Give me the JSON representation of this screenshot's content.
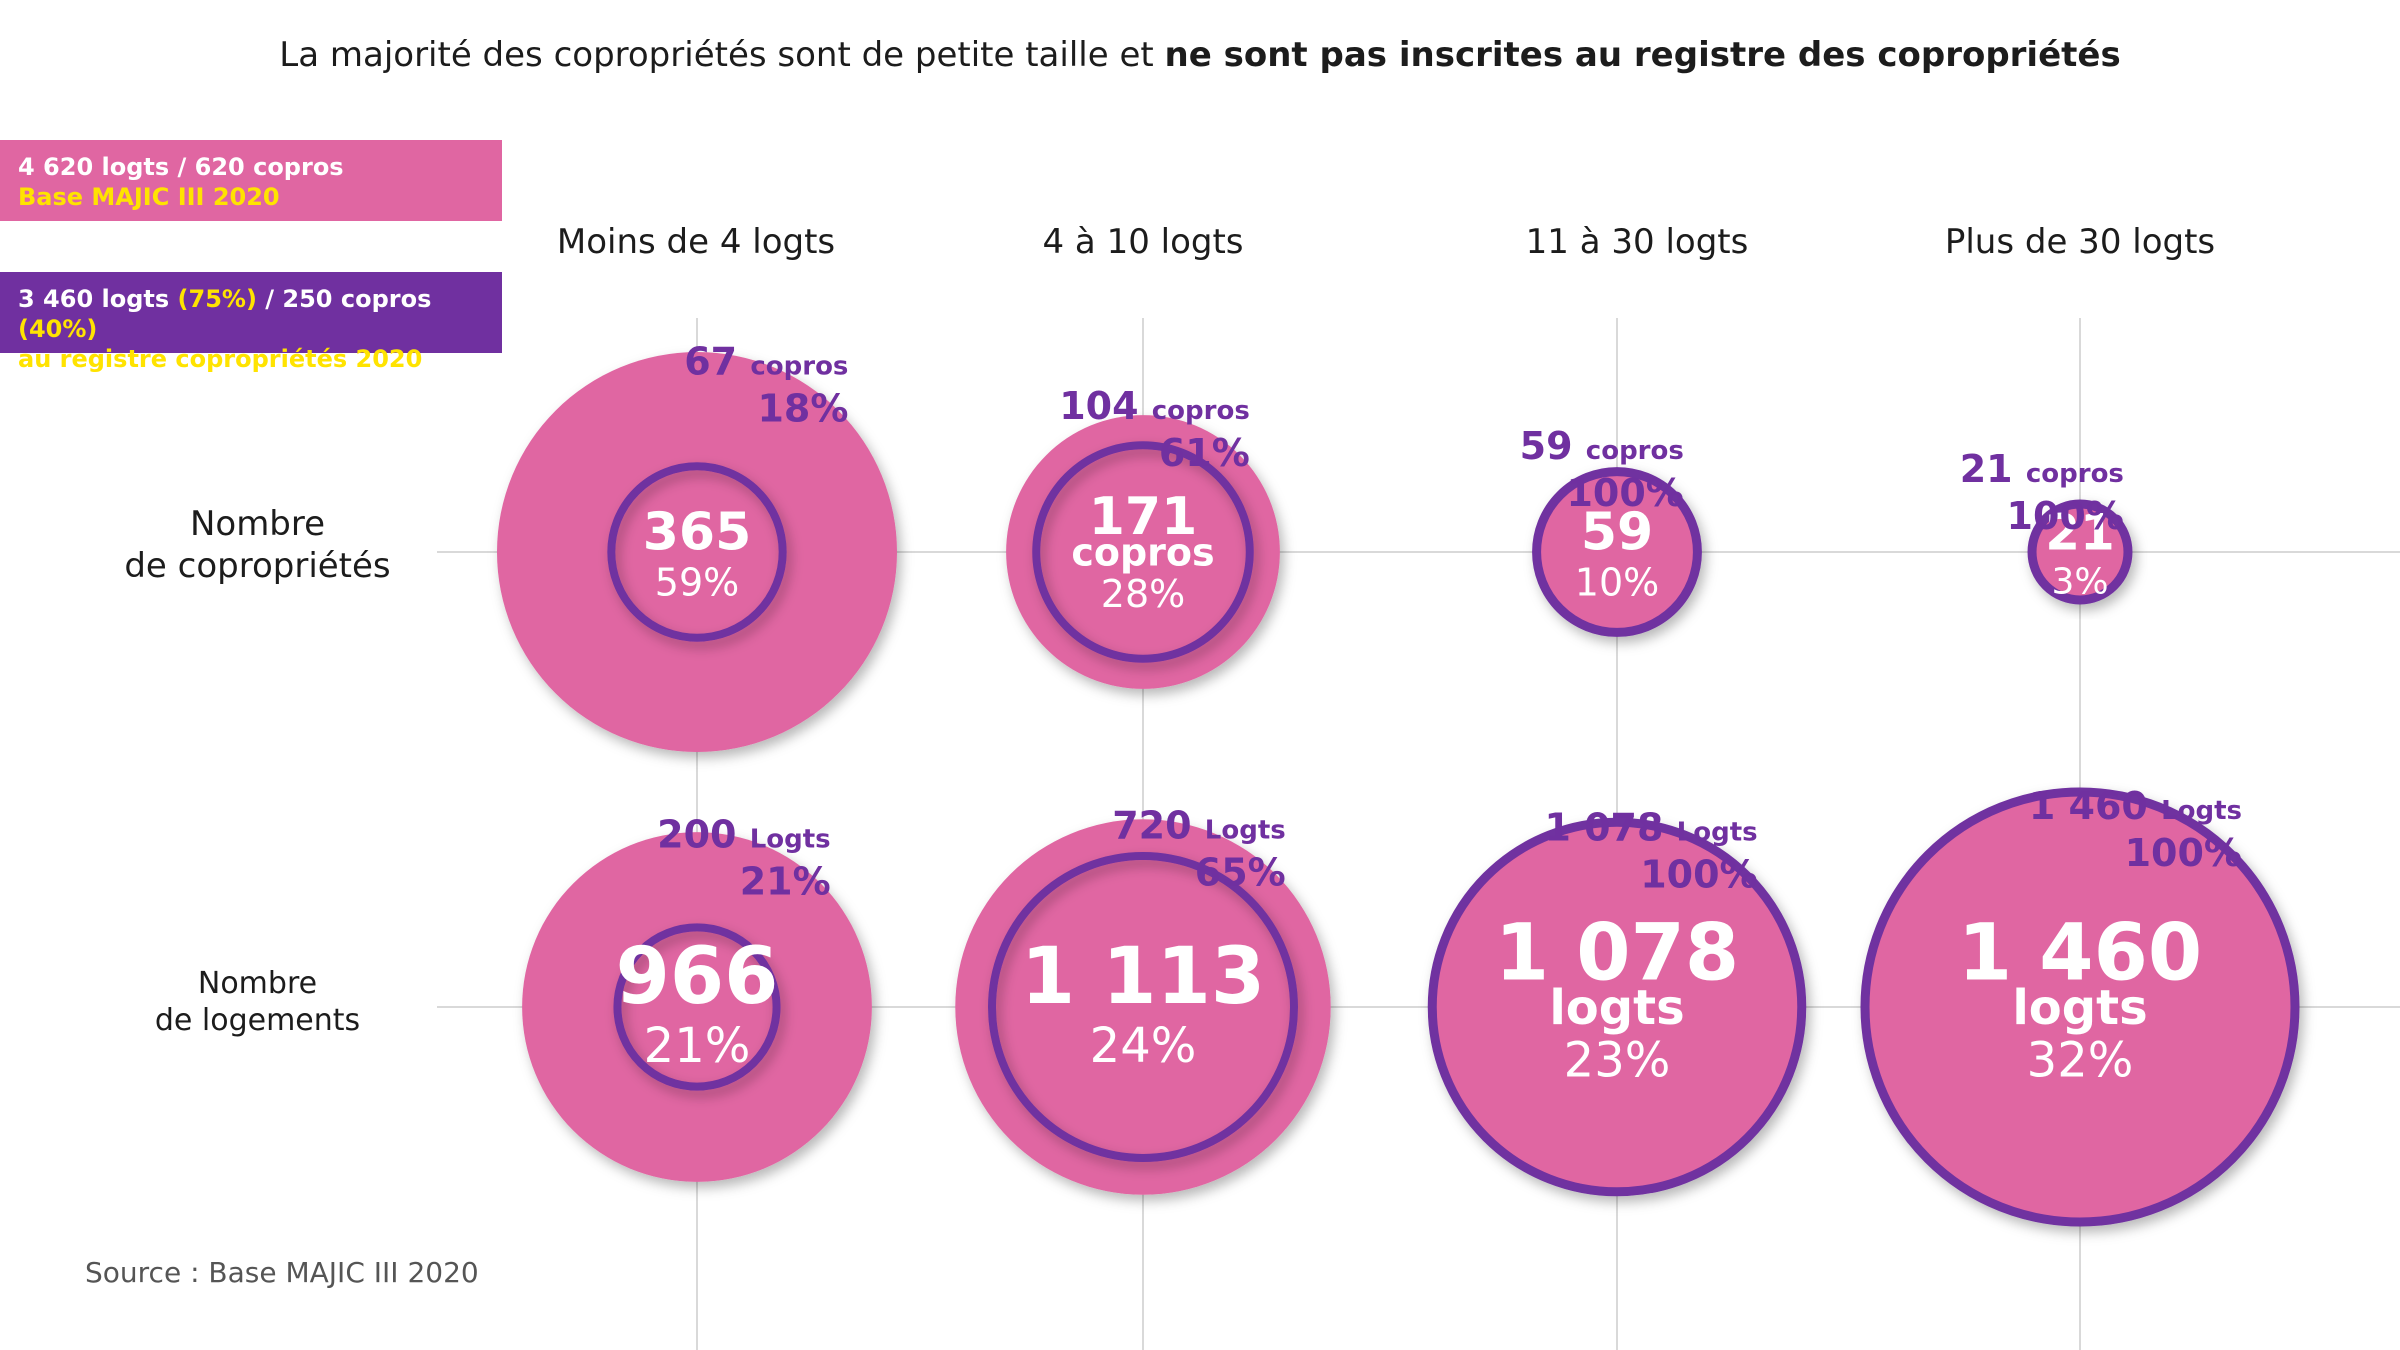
{
  "title": {
    "normal": "La majorité des copropriétés sont de petite taille et",
    "bold": "ne sont pas inscrites au registre des copropriétés"
  },
  "legend": {
    "total": {
      "line1": "4 620 logts / 620 copros",
      "line2": "Base MAJIC III 2020",
      "color": "#e066a2"
    },
    "registre": {
      "logts": "3 460 logts",
      "logts_pct": "(75%)",
      "sep": " / ",
      "copros": "250 copros",
      "copros_pct": "(40%)",
      "line2": "au registre copropriétés 2020",
      "color": "#7030a0"
    }
  },
  "row_labels": {
    "copros": [
      "Nombre",
      "de copropriétés"
    ],
    "logements": [
      "Nombre",
      "de logements"
    ]
  },
  "source": "Source : Base MAJIC III 2020",
  "chart_data": {
    "type": "bubble",
    "categories": [
      "Moins de 4 logts",
      "4 à 10 logts",
      "11 à 30 logts",
      "Plus de 30 logts"
    ],
    "series": [
      {
        "name": "Nombre de copropriétés",
        "total_values": [
          365,
          171,
          59,
          21
        ],
        "total_value_labels": [
          "365",
          "171",
          "59",
          "21"
        ],
        "total_unit_labels": [
          "",
          "copros",
          "",
          ""
        ],
        "total_pct": [
          "59%",
          "28%",
          "10%",
          "3%"
        ],
        "registre_values": [
          67,
          104,
          59,
          21
        ],
        "registre_value_labels": [
          "67",
          "104",
          "59",
          "21"
        ],
        "registre_unit_label": "copros",
        "registre_pct": [
          "18%",
          "61%",
          "100%",
          "100%"
        ]
      },
      {
        "name": "Nombre de logements",
        "total_values": [
          966,
          1113,
          1078,
          1460
        ],
        "total_value_labels": [
          "966",
          "1 113",
          "1 078",
          "1 460"
        ],
        "total_unit_labels": [
          "",
          "",
          "logts",
          "logts"
        ],
        "total_pct": [
          "21%",
          "24%",
          "23%",
          "32%"
        ],
        "registre_values": [
          200,
          720,
          1078,
          1460
        ],
        "registre_value_labels": [
          "200",
          "720",
          "1 078",
          "1 460"
        ],
        "registre_unit_label": "Logts",
        "registre_pct": [
          "21%",
          "65%",
          "100%",
          "100%"
        ]
      }
    ],
    "colors": {
      "total": "#e066a2",
      "registre": "#7030a0",
      "grid": "#d9d9d9"
    }
  }
}
